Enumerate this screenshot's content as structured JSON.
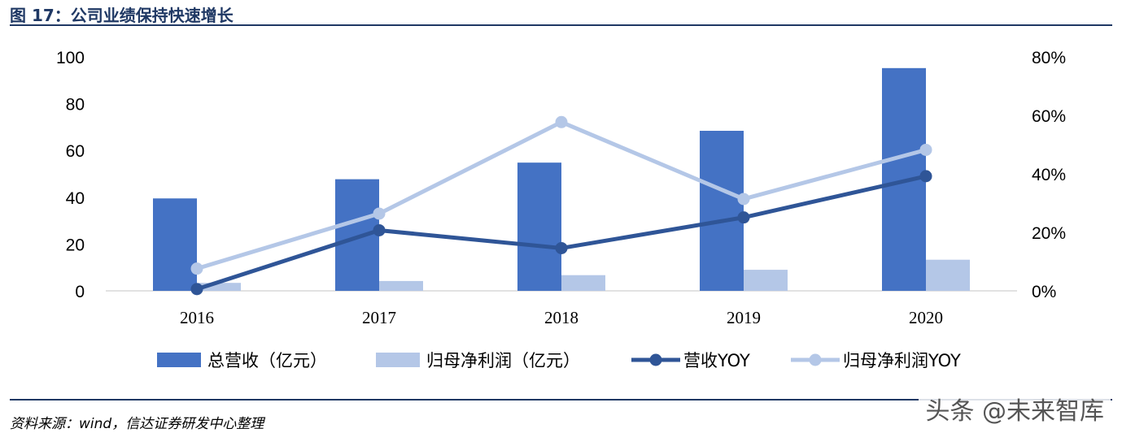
{
  "figure": {
    "title": "图 17：公司业绩保持快速增长",
    "source": "资料来源：wind，信达证券研发中心整理",
    "watermark": "头条 @未来智库"
  },
  "colors": {
    "revenue_bar": "#4472c4",
    "profit_bar": "#b4c7e7",
    "revenue_yoy": "#2f5597",
    "profit_yoy": "#b4c7e7",
    "rule": "#1f3864"
  },
  "chart_data": {
    "type": "bar",
    "categories": [
      "2016",
      "2017",
      "2018",
      "2019",
      "2020"
    ],
    "y_left": {
      "ticks": [
        "0",
        "20",
        "40",
        "60",
        "80",
        "100"
      ],
      "range": [
        0,
        100
      ]
    },
    "y_right": {
      "ticks": [
        "0%",
        "20%",
        "40%",
        "60%",
        "80%"
      ],
      "range": [
        0,
        80
      ]
    },
    "series": [
      {
        "name": "总营收（亿元）",
        "kind": "bar",
        "axis": "left",
        "values": [
          39.5,
          47.7,
          54.8,
          68.4,
          95.2
        ]
      },
      {
        "name": "归母净利润（亿元）",
        "kind": "bar",
        "axis": "left",
        "values": [
          3.4,
          4.2,
          6.7,
          9.0,
          13.3
        ]
      },
      {
        "name": "营收YOY",
        "kind": "line",
        "axis": "right",
        "values": [
          0.6,
          20.7,
          14.6,
          25.1,
          39.2
        ]
      },
      {
        "name": "归母净利润YOY",
        "kind": "line",
        "axis": "right",
        "values": [
          7.6,
          26.4,
          57.7,
          31.4,
          48.2
        ]
      }
    ],
    "legend_position": "bottom",
    "grid": false
  }
}
